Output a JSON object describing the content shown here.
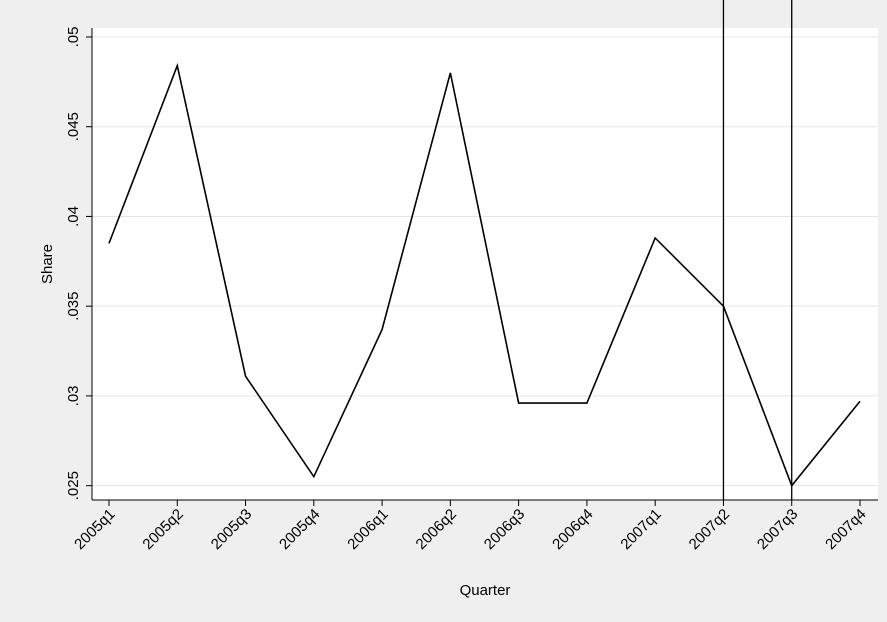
{
  "chart_data": {
    "type": "line",
    "x_label": "Quarter",
    "y_label": "Share",
    "categories": [
      "2005q1",
      "2005q2",
      "2005q3",
      "2005q4",
      "2006q1",
      "2006q2",
      "2006q3",
      "2006q4",
      "2007q1",
      "2007q2",
      "2007q3",
      "2007q4"
    ],
    "series": [
      {
        "color": "#000000",
        "values": [
          0.0385,
          0.0484,
          0.0311,
          0.0255,
          0.0337,
          0.048,
          0.0296,
          0.0296,
          0.0388,
          0.035,
          0.025,
          0.0297
        ]
      }
    ],
    "xlines": [
      "2007q2",
      "2007q3"
    ],
    "ylim": [
      0.0242,
      0.0505
    ],
    "yticks": [
      {
        "value": 0.025,
        "label": ".025"
      },
      {
        "value": 0.03,
        "label": ".03"
      },
      {
        "value": 0.035,
        "label": ".035"
      },
      {
        "value": 0.04,
        "label": ".04"
      },
      {
        "value": 0.045,
        "label": ".045"
      },
      {
        "value": 0.05,
        "label": ".05"
      }
    ],
    "grid": true
  }
}
